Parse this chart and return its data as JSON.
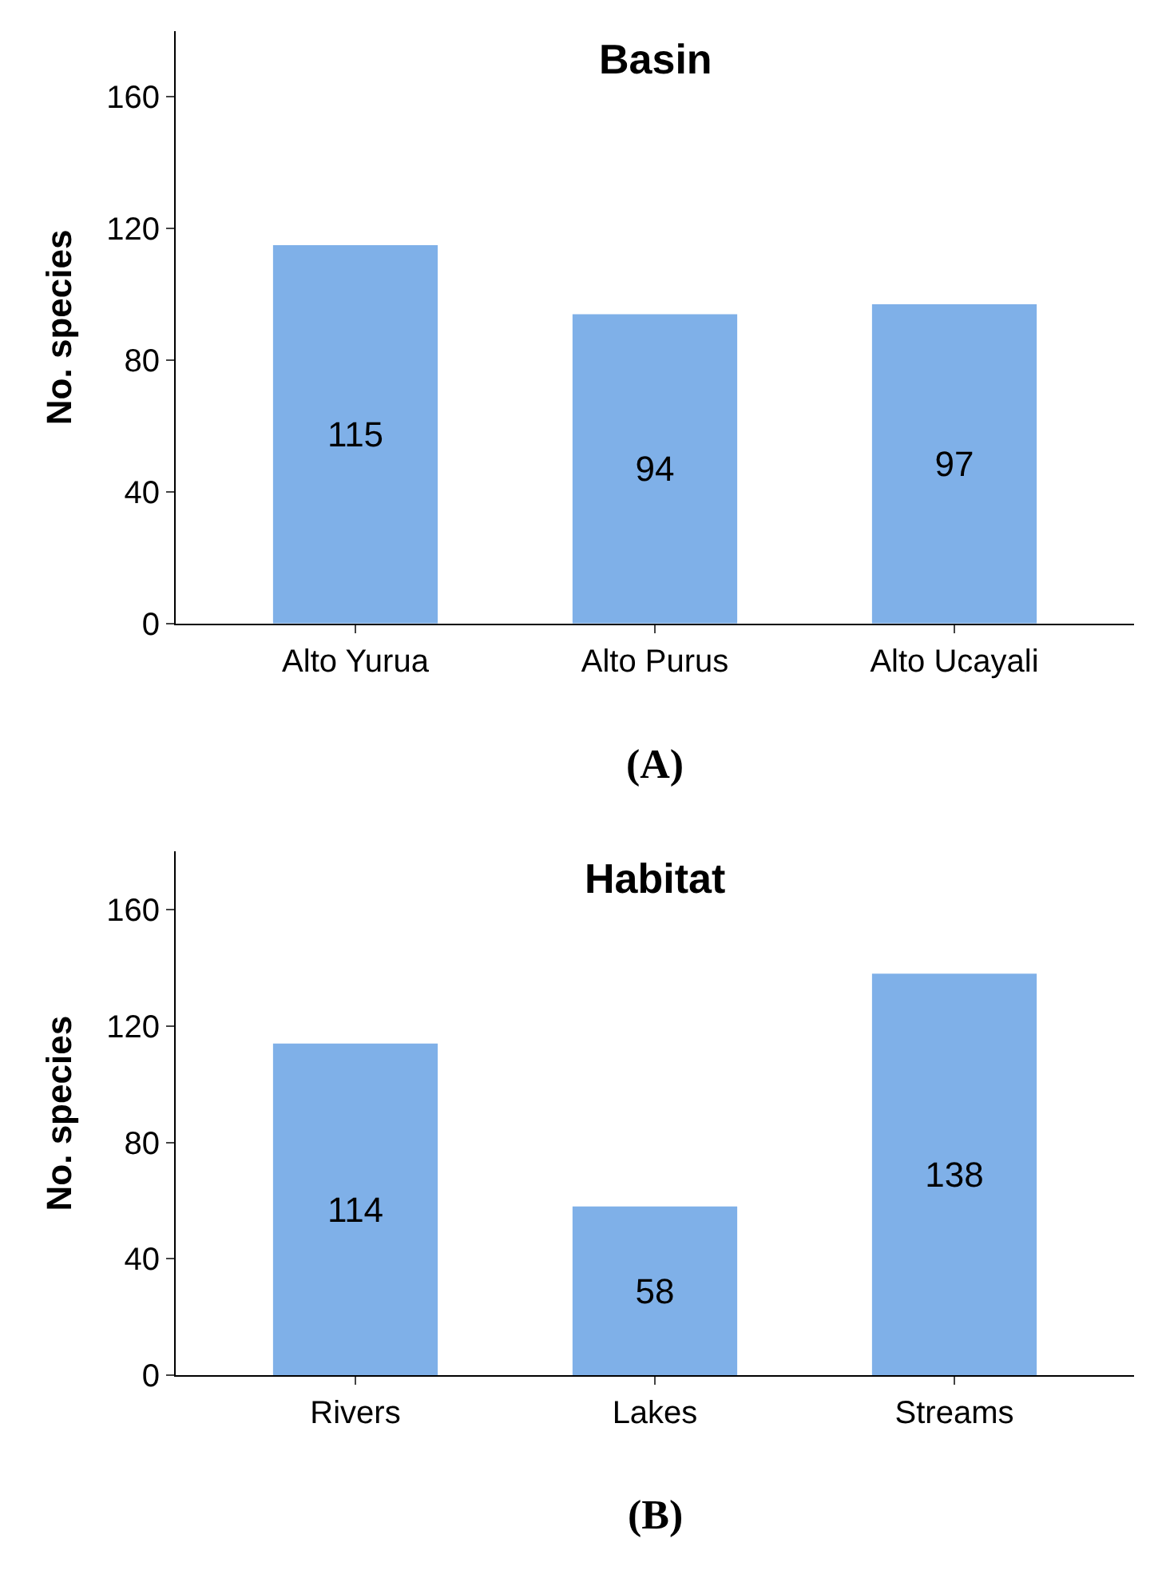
{
  "chart_data": [
    {
      "type": "bar",
      "title": "Basin",
      "ylabel": "No. species",
      "categories": [
        "Alto Yurua",
        "Alto Purus",
        "Alto Ucayali"
      ],
      "values": [
        115,
        94,
        97
      ],
      "color": "#7fb0e8",
      "ylim": [
        0,
        180
      ],
      "yticks": [
        0,
        40,
        80,
        120,
        160
      ],
      "data_labels": true,
      "annotations": [
        "(A)"
      ]
    },
    {
      "type": "bar",
      "title": "Habitat",
      "ylabel": "No. species",
      "categories": [
        "Rivers",
        "Lakes",
        "Streams"
      ],
      "values": [
        114,
        58,
        138
      ],
      "color": "#7fb0e8",
      "ylim": [
        0,
        180
      ],
      "yticks": [
        0,
        40,
        80,
        120,
        160
      ],
      "data_labels": true,
      "annotations": [
        "(B)"
      ]
    }
  ]
}
